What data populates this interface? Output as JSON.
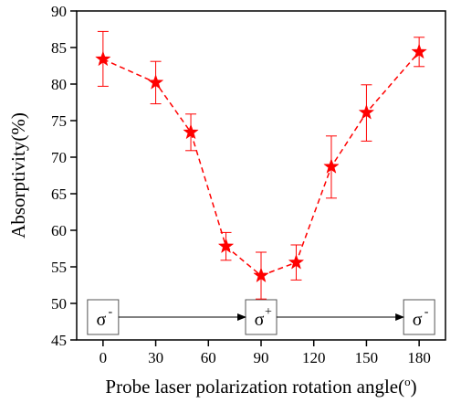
{
  "chart_data": {
    "type": "line",
    "title": "",
    "xlabel": "Probe laser polarization rotation angle(",
    "xlabel_unit": "o",
    "xlabel_close": ")",
    "ylabel": "Absorptivity(%)",
    "x_ticks": [
      0,
      30,
      60,
      90,
      120,
      150,
      180
    ],
    "y_ticks": [
      45,
      50,
      55,
      60,
      65,
      70,
      75,
      80,
      85,
      90
    ],
    "xlim": [
      -15,
      195
    ],
    "ylim": [
      45,
      90
    ],
    "grid": false,
    "series_color": "#ff0000",
    "marker": "star",
    "line_style": "dashed",
    "points": [
      {
        "x": 0,
        "y": 83.4,
        "err_low": 79.7,
        "err_high": 87.2
      },
      {
        "x": 30,
        "y": 80.2,
        "err_low": 77.3,
        "err_high": 83.1
      },
      {
        "x": 50,
        "y": 73.4,
        "err_low": 70.9,
        "err_high": 75.9
      },
      {
        "x": 70,
        "y": 57.8,
        "err_low": 55.9,
        "err_high": 59.7
      },
      {
        "x": 90,
        "y": 53.8,
        "err_low": 50.6,
        "err_high": 57.0
      },
      {
        "x": 110,
        "y": 55.6,
        "err_low": 53.2,
        "err_high": 58.0
      },
      {
        "x": 130,
        "y": 68.7,
        "err_low": 64.4,
        "err_high": 72.9
      },
      {
        "x": 150,
        "y": 76.1,
        "err_low": 72.2,
        "err_high": 79.9
      },
      {
        "x": 180,
        "y": 84.4,
        "err_low": 82.4,
        "err_high": 86.4
      }
    ],
    "annotations": [
      {
        "base": "σ",
        "sup": "-",
        "x": 0
      },
      {
        "base": "σ",
        "sup": "+",
        "x": 90
      },
      {
        "base": "σ",
        "sup": "-",
        "x": 180
      }
    ]
  }
}
